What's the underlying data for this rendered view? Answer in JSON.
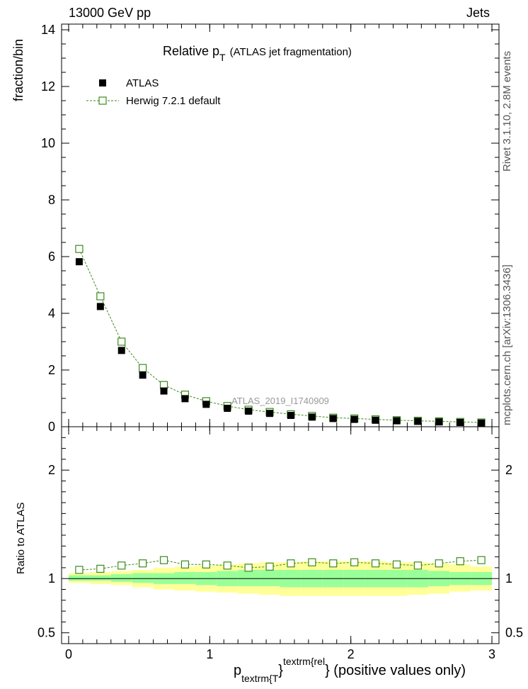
{
  "header": {
    "left": "13000 GeV pp",
    "right": "Jets"
  },
  "side_labels": {
    "rivet": "Rivet 3.1.10,  2.8M events",
    "mcplots": "mcplots.cern.ch [arXiv:1306.3436]"
  },
  "colors": {
    "data": "#000000",
    "mc": "#3a8a1a",
    "band_inner": "#99ff99",
    "band_outer": "#ffff99"
  },
  "chart_data": [
    {
      "type": "scatter",
      "title_main": "Relative p",
      "title_sub": "T",
      "title_rest": "(ATLAS jet fragmentation)",
      "ylabel": "fraction/bin",
      "ylim": [
        0,
        14.2
      ],
      "xlim": [
        -0.05,
        3.05
      ],
      "yticks": [
        0,
        2,
        4,
        6,
        8,
        10,
        12,
        14
      ],
      "ytick_labels": [
        "0",
        "2",
        "4",
        "6",
        "8",
        "10",
        "12",
        "14"
      ],
      "watermark": "ATLAS_2019_I1740909",
      "legend": [
        {
          "name": "ATLAS",
          "style": "filled-square"
        },
        {
          "name": "Herwig 7.2.1 default",
          "style": "open-square-dashed"
        }
      ],
      "x": [
        0.075,
        0.225,
        0.375,
        0.525,
        0.675,
        0.825,
        0.975,
        1.125,
        1.275,
        1.425,
        1.575,
        1.725,
        1.875,
        2.025,
        2.175,
        2.325,
        2.475,
        2.625,
        2.775,
        2.925
      ],
      "series": [
        {
          "name": "ATLAS",
          "values": [
            5.82,
            4.24,
            2.69,
            1.82,
            1.26,
            0.99,
            0.79,
            0.65,
            0.55,
            0.47,
            0.4,
            0.34,
            0.29,
            0.26,
            0.23,
            0.21,
            0.19,
            0.17,
            0.15,
            0.13
          ]
        },
        {
          "name": "Herwig 7.2.1 default",
          "values": [
            6.27,
            4.6,
            3.0,
            2.07,
            1.47,
            1.13,
            0.9,
            0.73,
            0.6,
            0.52,
            0.44,
            0.38,
            0.32,
            0.29,
            0.26,
            0.23,
            0.21,
            0.19,
            0.17,
            0.15
          ]
        }
      ]
    },
    {
      "type": "scatter",
      "ylabel": "Ratio to ATLAS",
      "xlabel_main": "p",
      "xlabel_sub": "textrm{T",
      "xlabel_brace": "}",
      "xlabel_sup": "textrm{rel",
      "xlabel_rest": "} (positive values only)",
      "ylim": [
        0.4,
        2.4
      ],
      "xlim": [
        -0.05,
        3.05
      ],
      "yticks": [
        0.5,
        1,
        2
      ],
      "ytick_labels": [
        "0.5",
        "1",
        "2"
      ],
      "xticks": [
        0,
        1,
        2,
        3
      ],
      "xtick_labels": [
        "0",
        "1",
        "2",
        "3"
      ],
      "x": [
        0.075,
        0.225,
        0.375,
        0.525,
        0.675,
        0.825,
        0.975,
        1.125,
        1.275,
        1.425,
        1.575,
        1.725,
        1.875,
        2.025,
        2.175,
        2.325,
        2.475,
        2.625,
        2.775,
        2.925
      ],
      "series": [
        {
          "name": "Herwig 7.2.1 default",
          "values": [
            1.08,
            1.09,
            1.12,
            1.14,
            1.17,
            1.13,
            1.13,
            1.12,
            1.1,
            1.11,
            1.14,
            1.15,
            1.14,
            1.15,
            1.14,
            1.13,
            1.12,
            1.14,
            1.16,
            1.17
          ]
        }
      ],
      "band_inner": {
        "low": [
          0.98,
          0.98,
          0.97,
          0.96,
          0.95,
          0.95,
          0.94,
          0.93,
          0.93,
          0.93,
          0.92,
          0.92,
          0.92,
          0.92,
          0.92,
          0.92,
          0.92,
          0.93,
          0.94,
          0.94
        ],
        "high": [
          1.03,
          1.03,
          1.04,
          1.05,
          1.05,
          1.06,
          1.06,
          1.07,
          1.08,
          1.08,
          1.08,
          1.08,
          1.08,
          1.08,
          1.08,
          1.08,
          1.08,
          1.07,
          1.06,
          1.06
        ]
      },
      "band_outer": {
        "low": [
          0.96,
          0.95,
          0.94,
          0.92,
          0.9,
          0.89,
          0.88,
          0.87,
          0.86,
          0.85,
          0.84,
          0.84,
          0.84,
          0.84,
          0.84,
          0.84,
          0.85,
          0.86,
          0.88,
          0.89
        ],
        "high": [
          1.05,
          1.06,
          1.07,
          1.08,
          1.1,
          1.11,
          1.12,
          1.13,
          1.14,
          1.15,
          1.15,
          1.16,
          1.16,
          1.16,
          1.16,
          1.15,
          1.15,
          1.14,
          1.13,
          1.11
        ]
      }
    }
  ]
}
